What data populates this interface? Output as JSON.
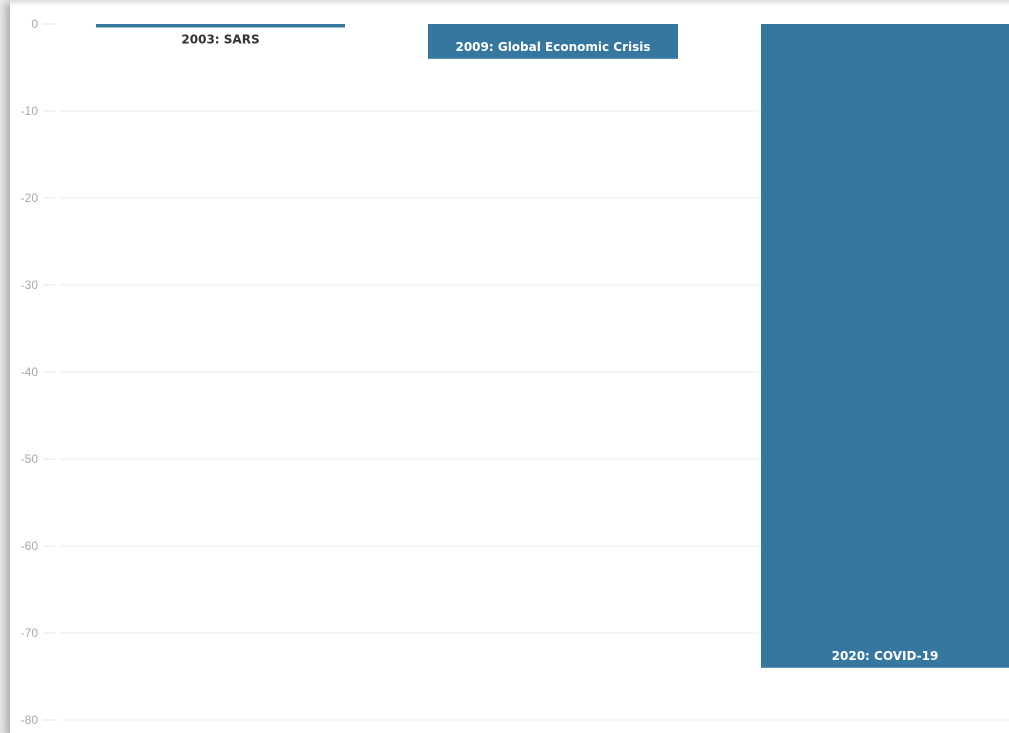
{
  "chart_data": {
    "type": "bar",
    "categories": [
      "2003: SARS",
      "2009: Global Economic Crisis",
      "2020: COVID-19"
    ],
    "values": [
      -0.4,
      -4,
      -74
    ],
    "ylim": [
      -80,
      0
    ],
    "yticks": [
      0,
      -10,
      -20,
      -30,
      -40,
      -50,
      -60,
      -70,
      -80
    ],
    "xlabel": "",
    "ylabel": "",
    "grid": true,
    "colors": {
      "bar": "#3677a0",
      "label_inside": "#ffffff",
      "label_outside": "#333333",
      "tick": "#a8a8a8",
      "grid": "#ececec"
    }
  }
}
